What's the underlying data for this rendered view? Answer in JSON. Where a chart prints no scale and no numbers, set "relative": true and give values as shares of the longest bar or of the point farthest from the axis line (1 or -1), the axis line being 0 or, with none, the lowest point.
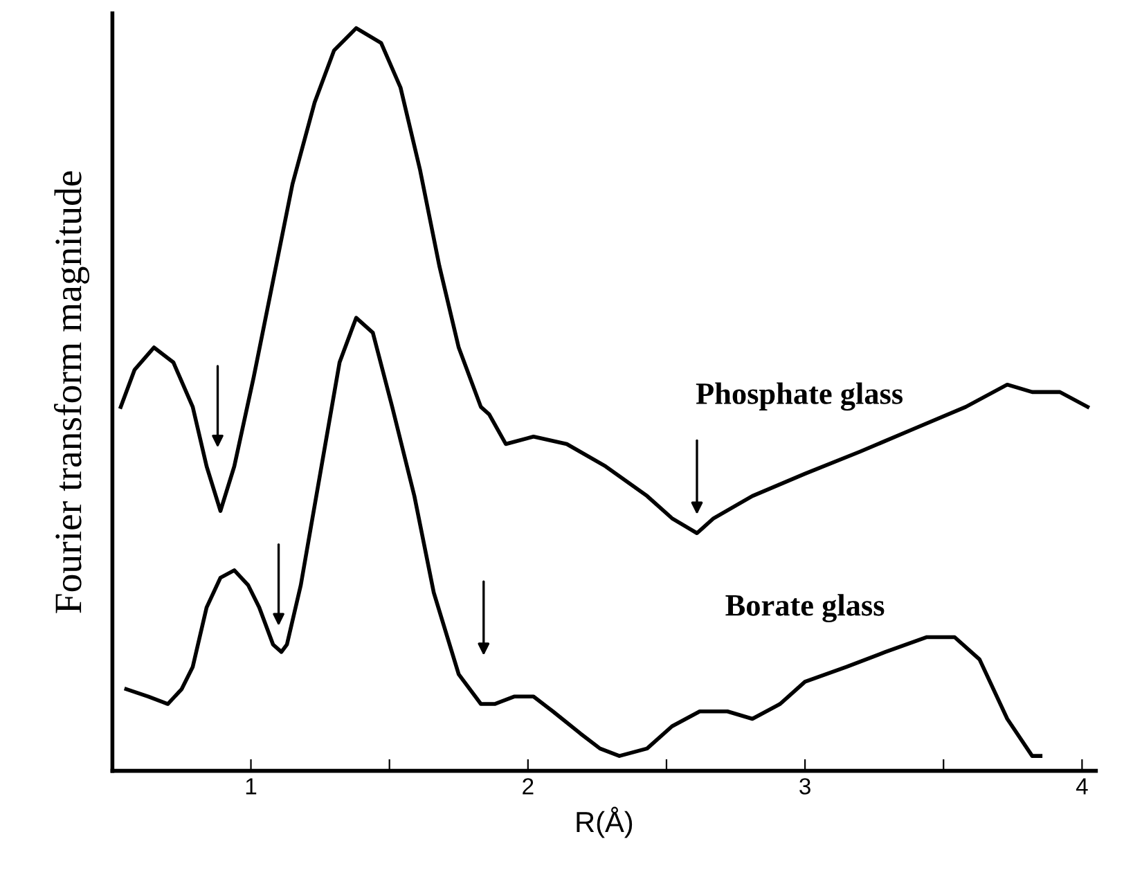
{
  "chart_data": {
    "type": "line",
    "relative": true,
    "xlabel": "R(Å)",
    "ylabel": "Fourier transform magnitude",
    "xlim": [
      0.5,
      4.05
    ],
    "xticks": [
      1,
      {
        "value": 1.5,
        "label": null
      },
      2,
      {
        "value": 2.5,
        "label": null
      },
      3,
      {
        "value": 3.5,
        "label": null
      },
      4
    ],
    "grid": false,
    "legend": false,
    "marker": "none",
    "line_style": "solid",
    "series": [
      {
        "name": "Phosphate glass",
        "color": "#000000",
        "x": [
          0.53,
          0.58,
          0.65,
          0.72,
          0.79,
          0.84,
          0.89,
          0.94,
          1.01,
          1.08,
          1.15,
          1.23,
          1.3,
          1.38,
          1.47,
          1.54,
          1.61,
          1.68,
          1.75,
          1.83,
          1.86,
          1.92,
          2.02,
          2.14,
          2.28,
          2.43,
          2.52,
          2.61,
          2.67,
          2.81,
          3.0,
          3.2,
          3.39,
          3.58,
          3.73,
          3.82,
          3.92,
          4.02
        ],
        "values": [
          0.49,
          0.54,
          0.57,
          0.55,
          0.49,
          0.41,
          0.35,
          0.41,
          0.53,
          0.66,
          0.79,
          0.9,
          0.97,
          1.0,
          0.98,
          0.92,
          0.81,
          0.68,
          0.57,
          0.49,
          0.48,
          0.44,
          0.45,
          0.44,
          0.41,
          0.37,
          0.34,
          0.32,
          0.34,
          0.37,
          0.4,
          0.43,
          0.46,
          0.49,
          0.52,
          0.51,
          0.51,
          0.49
        ]
      },
      {
        "name": "Borate glass",
        "color": "#000000",
        "x": [
          0.55,
          0.63,
          0.7,
          0.75,
          0.79,
          0.84,
          0.89,
          0.94,
          0.99,
          1.03,
          1.08,
          1.11,
          1.13,
          1.18,
          1.25,
          1.32,
          1.38,
          1.44,
          1.51,
          1.59,
          1.66,
          1.75,
          1.83,
          1.88,
          1.95,
          2.02,
          2.09,
          2.19,
          2.26,
          2.33,
          2.43,
          2.52,
          2.62,
          2.72,
          2.81,
          2.91,
          3.0,
          3.15,
          3.29,
          3.44,
          3.54,
          3.63,
          3.73,
          3.82,
          3.85
        ],
        "values": [
          0.11,
          0.1,
          0.09,
          0.11,
          0.14,
          0.22,
          0.26,
          0.27,
          0.25,
          0.22,
          0.17,
          0.16,
          0.17,
          0.25,
          0.4,
          0.55,
          0.61,
          0.59,
          0.49,
          0.37,
          0.24,
          0.13,
          0.09,
          0.09,
          0.1,
          0.1,
          0.08,
          0.05,
          0.03,
          0.02,
          0.03,
          0.06,
          0.08,
          0.08,
          0.07,
          0.09,
          0.12,
          0.14,
          0.16,
          0.18,
          0.18,
          0.15,
          0.07,
          0.02,
          0.02
        ]
      }
    ]
  }
}
